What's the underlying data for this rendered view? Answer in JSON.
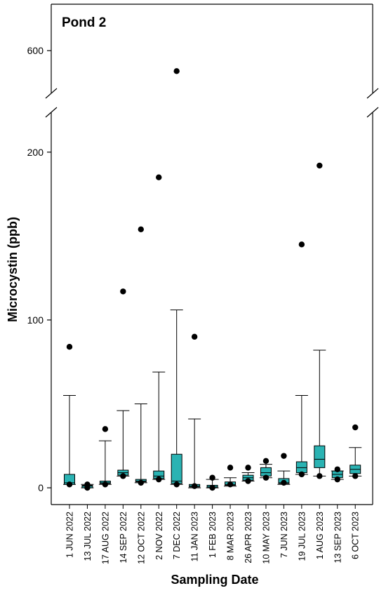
{
  "chart_data": {
    "type": "box",
    "panel_label": "Pond 2",
    "xlabel": "Sampling Date",
    "ylabel": "Microcystin (ppb)",
    "y_ticks_lower": [
      0,
      100,
      200
    ],
    "y_ticks_upper": [
      600
    ],
    "ylim_lower": [
      -10,
      225
    ],
    "ylim_upper": [
      545,
      650
    ],
    "axis_break": true,
    "box_color": "#2ab3b3",
    "categories": [
      "1 JUN 2022",
      "13 JUL 2022",
      "17 AUG 2022",
      "14 SEP 2022",
      "12 OCT 2022",
      "2 NOV 2022",
      "7 DEC 2022",
      "11 JAN 2023",
      "1 FEB 2023",
      "8 MAR 2023",
      "26 APR 2023",
      "10 MAY 2023",
      "7 JUN 2023",
      "19 JUL 2023",
      "1 AUG 2023",
      "13 SEP 2023",
      "6 OCT 2023"
    ],
    "boxes": [
      {
        "whisker_low": 2,
        "q1": 2,
        "median": 3,
        "q3": 8,
        "whisker_high": 55,
        "outliers": [
          2,
          84
        ]
      },
      {
        "whisker_low": 0,
        "q1": 0,
        "median": 1,
        "q3": 1.5,
        "whisker_high": 2,
        "outliers": [
          0,
          2
        ]
      },
      {
        "whisker_low": 2,
        "q1": 2.5,
        "median": 3,
        "q3": 4,
        "whisker_high": 28,
        "outliers": [
          2,
          35
        ]
      },
      {
        "whisker_low": 7,
        "q1": 7.5,
        "median": 9,
        "q3": 10.5,
        "whisker_high": 46,
        "outliers": [
          7,
          117
        ]
      },
      {
        "whisker_low": 3,
        "q1": 3.5,
        "median": 4,
        "q3": 5,
        "whisker_high": 50,
        "outliers": [
          3,
          154
        ]
      },
      {
        "whisker_low": 5,
        "q1": 5.5,
        "median": 7,
        "q3": 10,
        "whisker_high": 69,
        "outliers": [
          5,
          185
        ]
      },
      {
        "whisker_low": 2,
        "q1": 2.5,
        "median": 4,
        "q3": 20,
        "whisker_high": 106,
        "outliers": [
          2,
          578
        ]
      },
      {
        "whisker_low": 0,
        "q1": 0.5,
        "median": 1,
        "q3": 2,
        "whisker_high": 41,
        "outliers": [
          1,
          90
        ]
      },
      {
        "whisker_low": 0,
        "q1": 0,
        "median": 0.5,
        "q3": 1.5,
        "whisker_high": 5,
        "outliers": [
          0,
          6
        ]
      },
      {
        "whisker_low": 1,
        "q1": 1.5,
        "median": 2,
        "q3": 3.5,
        "whisker_high": 6,
        "outliers": [
          2,
          12
        ]
      },
      {
        "whisker_low": 4,
        "q1": 4.5,
        "median": 6,
        "q3": 7.5,
        "whisker_high": 9,
        "outliers": [
          4,
          12
        ]
      },
      {
        "whisker_low": 6,
        "q1": 7,
        "median": 9,
        "q3": 12,
        "whisker_high": 14,
        "outliers": [
          6,
          16
        ]
      },
      {
        "whisker_low": 2,
        "q1": 2.5,
        "median": 3,
        "q3": 5.5,
        "whisker_high": 10,
        "outliers": [
          3,
          19
        ]
      },
      {
        "whisker_low": 8,
        "q1": 9,
        "median": 12,
        "q3": 15.5,
        "whisker_high": 55,
        "outliers": [
          8,
          145
        ]
      },
      {
        "whisker_low": 7,
        "q1": 12,
        "median": 17,
        "q3": 25,
        "whisker_high": 82,
        "outliers": [
          7,
          192
        ]
      },
      {
        "whisker_low": 5,
        "q1": 6,
        "median": 8,
        "q3": 10,
        "whisker_high": 10,
        "outliers": [
          5,
          11
        ]
      },
      {
        "whisker_low": 7,
        "q1": 8.5,
        "median": 11,
        "q3": 13.5,
        "whisker_high": 24,
        "outliers": [
          7,
          36
        ]
      }
    ]
  }
}
